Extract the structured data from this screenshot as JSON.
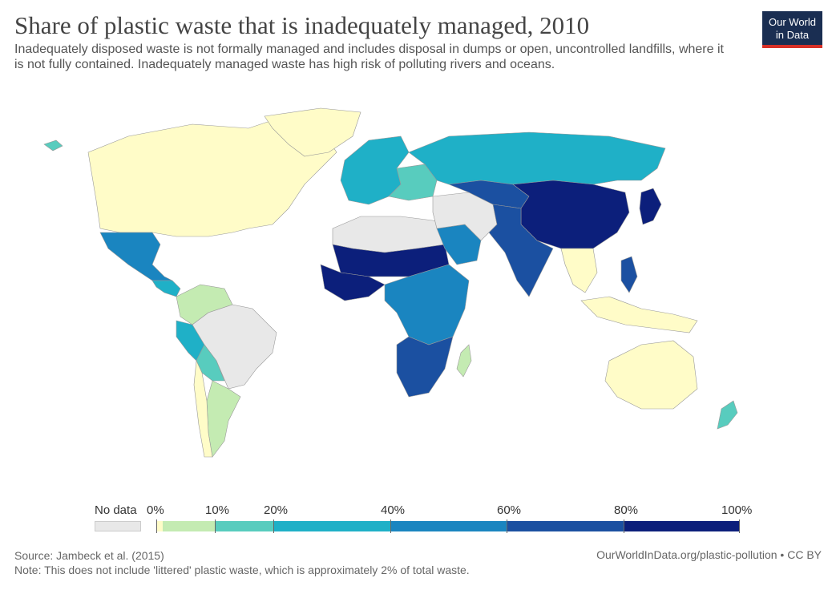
{
  "title": "Share of plastic waste that is inadequately managed, 2010",
  "subtitle": "Inadequately disposed waste is not formally managed and includes disposal in dumps or open, uncontrolled landfills, where it is not fully contained. Inadequately managed waste has high risk of polluting rivers and oceans.",
  "logo": {
    "line1": "Our World",
    "line2": "in Data"
  },
  "legend": {
    "no_data_label": "No data",
    "ticks": [
      "0%",
      "10%",
      "20%",
      "40%",
      "60%",
      "80%",
      "100%"
    ],
    "colors": [
      "#fffcc8",
      "#c4ebb2",
      "#58ccbe",
      "#1fb0c7",
      "#1a85c0",
      "#1b50a1",
      "#0c1f7b"
    ],
    "no_data_color": "#e8e8e8"
  },
  "regions": [
    {
      "name": "North America",
      "color": "#fffcc8"
    },
    {
      "name": "Greenland",
      "color": "#fffcc8"
    },
    {
      "name": "Mexico",
      "color": "#58ccbe"
    },
    {
      "name": "Central America",
      "color": "#1a85c0"
    },
    {
      "name": "Colombia/Venezuela",
      "color": "#1fb0c7"
    },
    {
      "name": "Brazil",
      "color": "#c4ebb2"
    },
    {
      "name": "Peru/Ecuador",
      "color": "#1fb0c7"
    },
    {
      "name": "Bolivia/Paraguay",
      "color": "#e8e8e8"
    },
    {
      "name": "Argentina",
      "color": "#58ccbe"
    },
    {
      "name": "Chile",
      "color": "#c4ebb2"
    },
    {
      "name": "Western Europe",
      "color": "#fffcc8"
    },
    {
      "name": "Eastern Europe",
      "color": "#1fb0c7"
    },
    {
      "name": "Russia",
      "color": "#58ccbe"
    },
    {
      "name": "North Africa",
      "color": "#1fb0c7"
    },
    {
      "name": "Sahara",
      "color": "#e8e8e8"
    },
    {
      "name": "West Africa",
      "color": "#0c1f7b"
    },
    {
      "name": "Central/East Africa",
      "color": "#0c1f7b"
    },
    {
      "name": "Southern Africa",
      "color": "#1a85c0"
    },
    {
      "name": "Madagascar",
      "color": "#1b50a1"
    },
    {
      "name": "Saudi Arabia",
      "color": "#c4ebb2"
    },
    {
      "name": "Middle East",
      "color": "#1a85c0"
    },
    {
      "name": "Kazakhstan/Central Asia",
      "color": "#e8e8e8"
    },
    {
      "name": "China",
      "color": "#1b50a1"
    },
    {
      "name": "India/Pakistan",
      "color": "#0c1f7b"
    },
    {
      "name": "Southeast Asia",
      "color": "#1b50a1"
    },
    {
      "name": "Japan",
      "color": "#fffcc8"
    },
    {
      "name": "Indonesia",
      "color": "#0c1f7b"
    },
    {
      "name": "Philippines",
      "color": "#1b50a1"
    },
    {
      "name": "Australia",
      "color": "#fffcc8"
    },
    {
      "name": "New Zealand",
      "color": "#fffcc8"
    },
    {
      "name": "Iceland",
      "color": "#58ccbe"
    }
  ],
  "footer": {
    "source": "Source: Jambeck et al. (2015)",
    "note": "Note: This does not include 'littered' plastic waste, which is approximately 2% of total waste.",
    "url": "OurWorldInData.org/plastic-pollution • CC BY"
  }
}
